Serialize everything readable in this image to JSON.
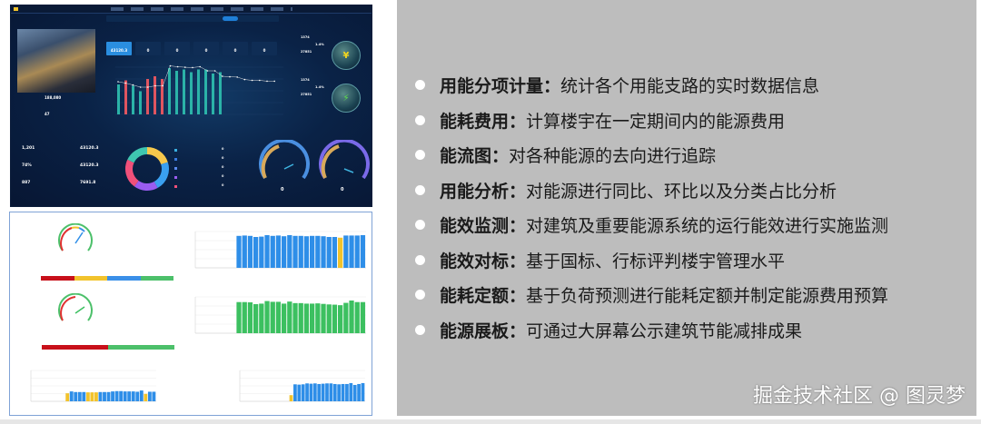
{
  "dashboard": {
    "building_info": {
      "label_area": "188,080",
      "label_count": "47"
    },
    "kpi_cards": [
      {
        "value": "43120.3",
        "active": true
      },
      {
        "value": "0"
      },
      {
        "value": "0"
      },
      {
        "value": "0"
      },
      {
        "value": "0"
      },
      {
        "value": "0"
      }
    ],
    "energy_chart": {
      "bars": [
        110,
        125,
        105,
        85,
        130,
        140,
        130,
        170,
        160,
        165,
        155,
        165,
        165,
        150,
        155
      ],
      "bar_colors": [
        "#2bb3a8",
        "#e05560",
        "#2bb3a8",
        "#2bb3a8",
        "#e05560",
        "#e05560",
        "#e05560",
        "#2bb3a8",
        "#2bb3a8",
        "#2bb3a8",
        "#2bb3a8",
        "#2bb3a8",
        "#2bb3a8",
        "#2bb3a8",
        "#2bb3a8"
      ],
      "line": [
        120,
        115,
        108,
        100,
        100,
        105,
        105,
        178,
        175,
        173,
        172,
        175,
        160,
        160,
        140,
        138,
        137,
        128,
        125,
        125,
        122,
        122
      ]
    },
    "savings": [
      {
        "v1": "1374",
        "pct": "1.4%",
        "v2": "27851",
        "icon": "yen-icon",
        "glyph": "¥",
        "color": "#f2d61e"
      },
      {
        "v1": "1374",
        "pct": "1.4%",
        "v2": "27851",
        "icon": "lightning-icon",
        "glyph": "⚡",
        "color": "#5ee04a"
      }
    ],
    "stats": [
      {
        "value": "1,201"
      },
      {
        "value": "43120.3"
      },
      {
        "value": "74%"
      },
      {
        "value": "43120.3"
      },
      {
        "value": "887"
      },
      {
        "value": "7691.8"
      }
    ],
    "donut": {
      "slices": [
        20,
        22,
        18,
        22,
        18
      ],
      "colors": [
        "#f6c84c",
        "#3aa0f0",
        "#9a5cf0",
        "#f0507a",
        "#3fc6b0"
      ]
    },
    "legend_values": [
      "0",
      "0",
      "0",
      "0",
      "0"
    ],
    "legend_colors": [
      "#3ab0e0",
      "#3a7ae0",
      "#5a8af0",
      "#9a5cf0",
      "#f0507a"
    ],
    "gauges": [
      {
        "value": "0"
      },
      {
        "value": "0"
      }
    ]
  },
  "efficiency": {
    "chart1": {
      "values": [
        0,
        0,
        0,
        0,
        0,
        0,
        0,
        4.4,
        4.45,
        4.4,
        4.25,
        4.3,
        4.5,
        4.4,
        4.45,
        4.35,
        4.5,
        4.4,
        4.4,
        4.35,
        4.4,
        4.4,
        4.35,
        4.25,
        4.25,
        4.15,
        4.45,
        4.45,
        4.45,
        4.5
      ],
      "highlight": [
        25
      ],
      "ymax": 5,
      "color": "#2e8ee8",
      "hl_color": "#f2c32c"
    },
    "chart2": {
      "values": [
        0,
        0,
        0,
        0,
        0,
        0,
        0,
        6.0,
        6.0,
        5.95,
        5.6,
        5.7,
        6.2,
        6.05,
        6.05,
        5.7,
        6.1,
        5.8,
        5.8,
        5.7,
        5.7,
        5.75,
        5.65,
        5.55,
        5.5,
        5.4,
        5.85,
        6.3,
        6.0,
        6.0
      ],
      "highlight": [],
      "ymax": 7,
      "color": "#3cc060",
      "hl_color": "#3cc060"
    },
    "chart3": {
      "values": [
        0,
        0,
        0,
        0,
        0,
        0,
        0,
        0,
        26,
        32,
        30,
        30,
        30,
        29,
        29,
        29,
        30,
        30,
        30,
        32,
        33,
        33,
        32,
        32,
        32,
        31,
        35,
        24,
        31,
        31
      ],
      "highlight": [
        8,
        13,
        14,
        15,
        27
      ],
      "ymax": 100,
      "color": "#2e8ee8",
      "hl_color": "#f2c32c"
    },
    "chart4": {
      "values": [
        0,
        0,
        0,
        0,
        0,
        0,
        0,
        0,
        0,
        0,
        0,
        0,
        20,
        55,
        54,
        55,
        58,
        57,
        58,
        56,
        57,
        58,
        58,
        56,
        55,
        56,
        56,
        59,
        53,
        56,
        59
      ],
      "highlight": [
        12
      ],
      "ymax": 100,
      "color": "#2e8ee8",
      "hl_color": "#f2c32c"
    },
    "gauge_bar1": [
      {
        "color": "#c8101a",
        "w": 25
      },
      {
        "color": "#f2c32c",
        "w": 25
      },
      {
        "color": "#3a8fe8",
        "w": 25
      },
      {
        "color": "#4cc06a",
        "w": 25
      }
    ],
    "gauge_bar2": [
      {
        "color": "#c8101a",
        "w": 50
      },
      {
        "color": "#4cc06a",
        "w": 50
      }
    ]
  },
  "features": [
    {
      "title": "用能分项计量：",
      "desc": "统计各个用能支路的实时数据信息"
    },
    {
      "title": "能耗费用：",
      "desc": "计算楼宇在一定期间内的能源费用"
    },
    {
      "title": "能流图：",
      "desc": "对各种能源的去向进行追踪"
    },
    {
      "title": "用能分析：",
      "desc": "对能源进行同比、环比以及分类占比分析"
    },
    {
      "title": "能效监测：",
      "desc": "对建筑及重要能源系统的运行能效进行实施监测"
    },
    {
      "title": "能效对标：",
      "desc": "基于国标、行标评判楼宇管理水平"
    },
    {
      "title": "能耗定额：",
      "desc": "基于负荷预测进行能耗定额并制定能源费用预算"
    },
    {
      "title": "能源展板：",
      "desc": "可通过大屏幕公示建筑节能减排成果"
    }
  ],
  "watermark": "掘金技术社区 @ 图灵梦"
}
